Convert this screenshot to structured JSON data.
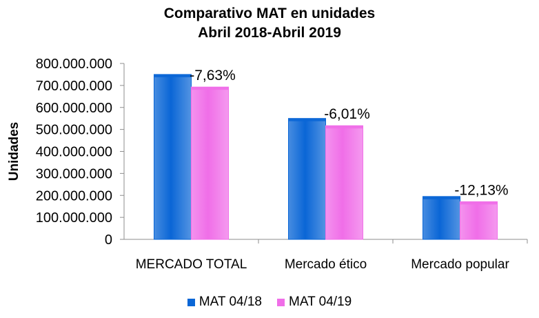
{
  "chart_data": {
    "type": "bar",
    "title": "Comparativo MAT en unidades",
    "subtitle": "Abril 2018-Abril 2019",
    "ylabel": "Unidades",
    "xlabel": "",
    "categories": [
      "MERCADO TOTAL",
      "Mercado ético",
      "Mercado popular"
    ],
    "series": [
      {
        "name": "MAT 04/18",
        "color": "#0a66d6",
        "values": [
          750000000,
          550000000,
          195000000
        ]
      },
      {
        "name": "MAT 04/19",
        "color": "#f06ee8",
        "values": [
          692800000,
          517000000,
          171300000
        ]
      }
    ],
    "data_labels": [
      "-7,63%",
      "-6,01%",
      "-12,13%"
    ],
    "ylim": [
      0,
      800000000
    ],
    "yticks": [
      "0",
      "100.000.000",
      "200.000.000",
      "300.000.000",
      "400.000.000",
      "500.000.000",
      "600.000.000",
      "700.000.000",
      "800.000.000"
    ],
    "grid": false,
    "legend_position": "bottom"
  }
}
